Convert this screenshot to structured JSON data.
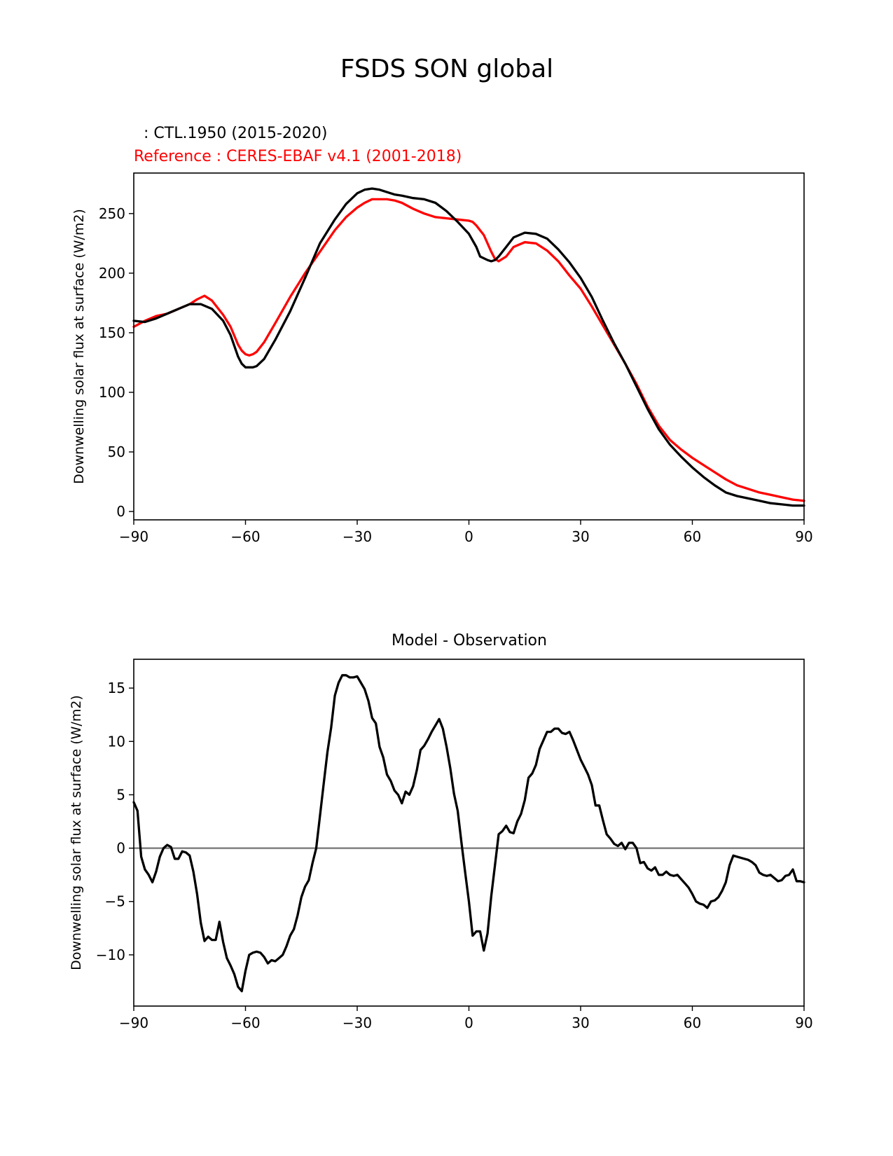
{
  "figure": {
    "suptitle": "FSDS SON global",
    "model_label": "  : CTL.1950 (2015-2020)",
    "reference_label": "Reference : CERES-EBAF v4.1 (2001-2018)",
    "colors": {
      "model": "#000000",
      "reference": "#ff0000",
      "zero_line": "#808080"
    }
  },
  "chart_data": [
    {
      "type": "line",
      "title": "",
      "xlabel": "",
      "ylabel": "Downwelling solar flux at surface (W/m2)",
      "xlim": [
        -90,
        90
      ],
      "ylim": [
        -7,
        284
      ],
      "xticks": [
        -90,
        -60,
        -30,
        0,
        30,
        60,
        90
      ],
      "xtick_labels": [
        "−90",
        "−60",
        "−30",
        "0",
        "30",
        "60",
        "90"
      ],
      "yticks": [
        0,
        50,
        100,
        150,
        200,
        250
      ],
      "ytick_labels": [
        "0",
        "50",
        "100",
        "150",
        "200",
        "250"
      ],
      "series": [
        {
          "name": "CTL.1950 (2015-2020)",
          "color": "#000000",
          "x": [
            -90,
            -87,
            -84,
            -81,
            -78,
            -75,
            -72,
            -69,
            -66,
            -64,
            -62,
            -61,
            -60,
            -59,
            -58,
            -57,
            -55,
            -52,
            -48,
            -44,
            -40,
            -36,
            -33,
            -30,
            -28,
            -26,
            -24,
            -22,
            -20,
            -18,
            -15,
            -12,
            -9,
            -6,
            -3,
            0,
            2,
            3,
            5,
            6,
            7,
            8,
            10,
            12,
            15,
            18,
            21,
            24,
            27,
            30,
            33,
            36,
            39,
            42,
            45,
            48,
            51,
            54,
            57,
            60,
            63,
            66,
            69,
            72,
            75,
            78,
            81,
            84,
            87,
            90
          ],
          "y": [
            160,
            159,
            162,
            166,
            170,
            174,
            174,
            170,
            160,
            148,
            130,
            124,
            121,
            121,
            121,
            122,
            128,
            144,
            168,
            196,
            225,
            245,
            258,
            267,
            270,
            271,
            270,
            268,
            266,
            265,
            263,
            262,
            259,
            252,
            243,
            233,
            222,
            214,
            211,
            210,
            211,
            214,
            222,
            230,
            234,
            233,
            229,
            220,
            209,
            196,
            180,
            160,
            141,
            124,
            105,
            86,
            69,
            56,
            46,
            37,
            29,
            22,
            16,
            13,
            11,
            9,
            7,
            6,
            5,
            5
          ]
        },
        {
          "name": "CERES-EBAF v4.1 (2001-2018)",
          "color": "#ff0000",
          "x": [
            -90,
            -87,
            -84,
            -81,
            -78,
            -75,
            -73,
            -71,
            -69,
            -66,
            -64,
            -62,
            -61,
            -60,
            -59,
            -58,
            -57,
            -55,
            -52,
            -48,
            -44,
            -40,
            -36,
            -33,
            -30,
            -28,
            -26,
            -24,
            -22,
            -20,
            -18,
            -15,
            -12,
            -9,
            -6,
            -3,
            0,
            1,
            2,
            4,
            6,
            7,
            8,
            10,
            12,
            15,
            18,
            21,
            24,
            27,
            30,
            33,
            36,
            39,
            42,
            45,
            48,
            51,
            54,
            57,
            60,
            63,
            66,
            69,
            72,
            75,
            78,
            81,
            84,
            87,
            90
          ],
          "y": [
            155,
            160,
            164,
            166,
            170,
            174,
            178,
            181,
            177,
            165,
            155,
            140,
            135,
            132,
            131,
            132,
            134,
            142,
            158,
            180,
            200,
            218,
            236,
            247,
            255,
            259,
            262,
            262,
            262,
            261,
            259,
            254,
            250,
            247,
            246,
            245,
            244,
            243,
            240,
            232,
            218,
            212,
            210,
            214,
            222,
            226,
            225,
            219,
            210,
            198,
            187,
            172,
            156,
            140,
            124,
            107,
            88,
            72,
            60,
            52,
            45,
            39,
            33,
            27,
            22,
            19,
            16,
            14,
            12,
            10,
            9
          ]
        }
      ]
    },
    {
      "type": "line",
      "title": "Model - Observation",
      "xlabel": "",
      "ylabel": "Downwelling solar flux at surface (W/m2)",
      "xlim": [
        -90,
        90
      ],
      "ylim": [
        -14.8,
        17.7
      ],
      "xticks": [
        -90,
        -60,
        -30,
        0,
        30,
        60,
        90
      ],
      "xtick_labels": [
        "−90",
        "−60",
        "−30",
        "0",
        "30",
        "60",
        "90"
      ],
      "yticks": [
        -10,
        -5,
        0,
        5,
        10,
        15
      ],
      "ytick_labels": [
        "−10",
        "−5",
        "0",
        "5",
        "10",
        "15"
      ],
      "reference_line": 0,
      "series": [
        {
          "name": "Model - Observation",
          "color": "#000000",
          "x": [
            -90,
            -89,
            -88,
            -87,
            -86,
            -85,
            -84,
            -83,
            -82,
            -81,
            -80,
            -79,
            -78,
            -77,
            -76,
            -75,
            -74,
            -73,
            -72,
            -71,
            -70,
            -69,
            -68,
            -67,
            -66,
            -65,
            -64,
            -63,
            -62,
            -61,
            -60,
            -59,
            -58,
            -57,
            -56,
            -55,
            -54,
            -53,
            -52,
            -51,
            -50,
            -49,
            -48,
            -47,
            -46,
            -45,
            -44,
            -43,
            -42,
            -41,
            -40,
            -39,
            -38,
            -37,
            -36,
            -35,
            -34,
            -33,
            -32,
            -31,
            -30,
            -29,
            -28,
            -27,
            -26,
            -25,
            -24,
            -23,
            -22,
            -21,
            -20,
            -19,
            -18,
            -17,
            -16,
            -15,
            -14,
            -13,
            -12,
            -11,
            -10,
            -9,
            -8,
            -7,
            -6,
            -5,
            -4,
            -3,
            -2,
            -1,
            0,
            1,
            2,
            3,
            4,
            5,
            6,
            7,
            8,
            9,
            10,
            11,
            12,
            13,
            14,
            15,
            16,
            17,
            18,
            19,
            20,
            21,
            22,
            23,
            24,
            25,
            26,
            27,
            28,
            29,
            30,
            31,
            32,
            33,
            34,
            35,
            36,
            37,
            38,
            39,
            40,
            41,
            42,
            43,
            44,
            45,
            46,
            47,
            48,
            49,
            50,
            51,
            52,
            53,
            54,
            55,
            56,
            57,
            58,
            59,
            60,
            61,
            62,
            63,
            64,
            65,
            66,
            67,
            68,
            69,
            70,
            71,
            72,
            73,
            74,
            75,
            76,
            77,
            78,
            79,
            80,
            81,
            82,
            83,
            84,
            85,
            86,
            87,
            88,
            89,
            90
          ],
          "y": [
            4.3,
            3.5,
            -0.8,
            -2.0,
            -2.5,
            -3.2,
            -2.2,
            -0.8,
            0.0,
            0.3,
            0.1,
            -1.0,
            -1.0,
            -0.3,
            -0.4,
            -0.7,
            -2.2,
            -4.3,
            -7.0,
            -8.7,
            -8.3,
            -8.6,
            -8.6,
            -6.9,
            -8.8,
            -10.3,
            -11.0,
            -11.8,
            -13.0,
            -13.4,
            -11.5,
            -10.0,
            -9.8,
            -9.7,
            -9.8,
            -10.2,
            -10.8,
            -10.5,
            -10.6,
            -10.3,
            -10.0,
            -9.2,
            -8.2,
            -7.6,
            -6.3,
            -4.6,
            -3.6,
            -3.0,
            -1.4,
            0.0,
            3.0,
            6.0,
            9.0,
            11.3,
            14.3,
            15.5,
            16.2,
            16.2,
            16.0,
            16.0,
            16.1,
            15.5,
            14.9,
            13.8,
            12.2,
            11.7,
            9.5,
            8.5,
            6.9,
            6.3,
            5.4,
            5.0,
            4.2,
            5.3,
            5.0,
            5.8,
            7.3,
            9.2,
            9.6,
            10.2,
            10.9,
            11.5,
            12.1,
            11.2,
            9.5,
            7.5,
            5.1,
            3.5,
            0.5,
            -2.3,
            -5.0,
            -8.2,
            -7.8,
            -7.8,
            -9.6,
            -8.0,
            -4.5,
            -1.6,
            1.3,
            1.6,
            2.1,
            1.5,
            1.4,
            2.5,
            3.2,
            4.5,
            6.6,
            7.0,
            7.8,
            9.3,
            10.1,
            10.9,
            10.9,
            11.2,
            11.2,
            10.8,
            10.7,
            10.9,
            10.1,
            9.2,
            8.3,
            7.6,
            6.9,
            5.9,
            4.0,
            4.0,
            2.6,
            1.3,
            0.9,
            0.4,
            0.2,
            0.5,
            -0.1,
            0.5,
            0.5,
            0.0,
            -1.4,
            -1.3,
            -1.9,
            -2.1,
            -1.8,
            -2.5,
            -2.5,
            -2.2,
            -2.5,
            -2.6,
            -2.5,
            -2.9,
            -3.3,
            -3.7,
            -4.3,
            -5.0,
            -5.2,
            -5.3,
            -5.6,
            -5.0,
            -4.9,
            -4.6,
            -4.0,
            -3.2,
            -1.6,
            -0.7,
            -0.8,
            -0.9,
            -1.0,
            -1.1,
            -1.3,
            -1.6,
            -2.3,
            -2.5,
            -2.6,
            -2.5,
            -2.8,
            -3.1,
            -3.0,
            -2.6,
            -2.5,
            -2.0,
            -3.1,
            -3.1,
            -3.2
          ]
        }
      ]
    }
  ]
}
